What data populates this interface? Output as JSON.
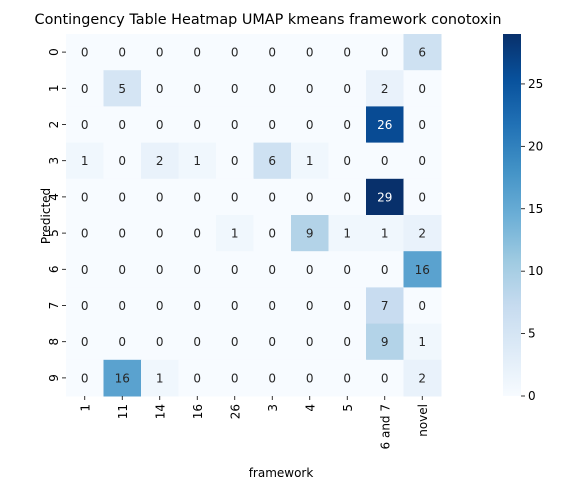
{
  "chart_data": {
    "type": "heatmap",
    "title": "Contingency Table Heatmap UMAP kmeans framework conotoxin",
    "xlabel": "framework",
    "ylabel": "Predicted",
    "x_categories": [
      "1",
      "11",
      "14",
      "16",
      "26",
      "3",
      "4",
      "5",
      "6 and 7",
      "novel"
    ],
    "y_categories": [
      "0",
      "1",
      "2",
      "3",
      "4",
      "5",
      "6",
      "7",
      "8",
      "9"
    ],
    "values": [
      [
        0,
        0,
        0,
        0,
        0,
        0,
        0,
        0,
        0,
        6
      ],
      [
        0,
        5,
        0,
        0,
        0,
        0,
        0,
        0,
        2,
        0
      ],
      [
        0,
        0,
        0,
        0,
        0,
        0,
        0,
        0,
        26,
        0
      ],
      [
        1,
        0,
        2,
        1,
        0,
        6,
        1,
        0,
        0,
        0
      ],
      [
        0,
        0,
        0,
        0,
        0,
        0,
        0,
        0,
        29,
        0
      ],
      [
        0,
        0,
        0,
        0,
        1,
        0,
        9,
        1,
        1,
        2
      ],
      [
        0,
        0,
        0,
        0,
        0,
        0,
        0,
        0,
        0,
        16
      ],
      [
        0,
        0,
        0,
        0,
        0,
        0,
        0,
        0,
        7,
        0
      ],
      [
        0,
        0,
        0,
        0,
        0,
        0,
        0,
        0,
        9,
        1
      ],
      [
        0,
        16,
        1,
        0,
        0,
        0,
        0,
        0,
        0,
        2
      ]
    ],
    "colormap": "Blues",
    "vmin": 0,
    "vmax": 29,
    "colorbar_ticks": [
      0,
      5,
      10,
      15,
      20,
      25
    ],
    "legend": "right"
  }
}
